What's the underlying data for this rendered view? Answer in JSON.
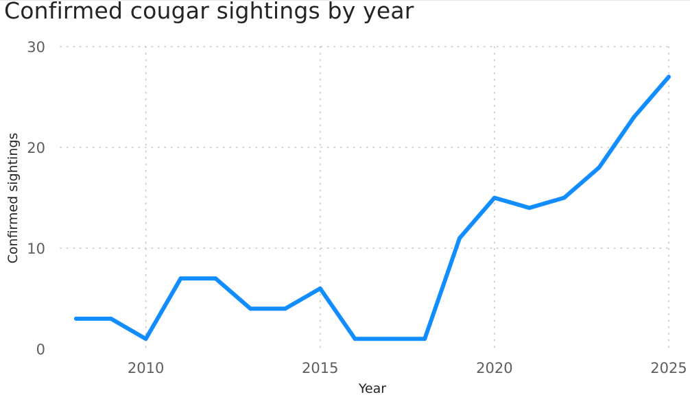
{
  "chart_data": {
    "type": "line",
    "title": "Confirmed cougar sightings by year",
    "xlabel": "Year",
    "ylabel": "Confirmed sightings",
    "x": [
      2008,
      2009,
      2010,
      2011,
      2012,
      2013,
      2014,
      2015,
      2016,
      2017,
      2018,
      2019,
      2020,
      2021,
      2022,
      2023,
      2024,
      2025
    ],
    "series": [
      {
        "values": [
          3,
          3,
          1,
          7,
          7,
          4,
          4,
          6,
          1,
          1,
          1,
          11,
          15,
          14,
          15,
          18,
          23,
          27
        ],
        "color": "#118DFF"
      }
    ],
    "xticks": [
      2010,
      2015,
      2020,
      2025
    ],
    "yticks": [
      0,
      10,
      20,
      30
    ],
    "xlim": [
      2008,
      2025
    ],
    "ylim": [
      0,
      30
    ],
    "grid": true
  }
}
